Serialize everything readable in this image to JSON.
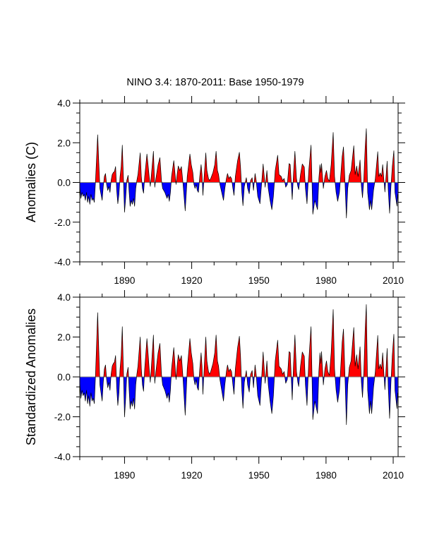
{
  "chart_data": {
    "type": "area",
    "title": "NINO 3.4: 1870-2011: Base 1950-1979",
    "xlim": [
      1870,
      2012.2
    ],
    "x_major_ticks": [
      1890,
      1920,
      1950,
      1980,
      2010
    ],
    "x_tick_labels": [
      "1890",
      "1920",
      "1950",
      "1980",
      "2010"
    ],
    "x_minor_step": 10,
    "y_tick_values": [
      4.0,
      2.0,
      0.0,
      -2.0,
      -4.0
    ],
    "y_tick_labels": [
      "4.0",
      "2.0",
      "0.0",
      "-2.0",
      "-4.0"
    ],
    "y_minor_step": 0.5,
    "grid": false,
    "legend": "none",
    "colors": {
      "positive": "#ff0000",
      "negative": "#0000ff",
      "line": "#000000"
    },
    "x": [
      1870.0,
      1870.5,
      1871.0,
      1871.5,
      1872.0,
      1872.5,
      1873.0,
      1873.5,
      1874.0,
      1874.5,
      1875.0,
      1875.5,
      1876.0,
      1876.5,
      1877.0,
      1877.5,
      1878.0,
      1878.5,
      1879.0,
      1879.5,
      1880.0,
      1880.5,
      1881.0,
      1881.5,
      1882.0,
      1882.5,
      1883.0,
      1883.5,
      1884.0,
      1884.5,
      1885.0,
      1885.5,
      1886.0,
      1886.5,
      1887.0,
      1887.5,
      1888.0,
      1888.5,
      1889.0,
      1889.5,
      1890.0,
      1890.5,
      1891.0,
      1891.6,
      1892.0,
      1892.5,
      1893.0,
      1893.5,
      1894.0,
      1894.5,
      1895.0,
      1895.5,
      1896.0,
      1897.0,
      1897.5,
      1898.0,
      1898.5,
      1899.0,
      1900.0,
      1900.5,
      1901.0,
      1901.5,
      1902.0,
      1902.9,
      1903.5,
      1904.0,
      1905.0,
      1905.8,
      1906.5,
      1907.0,
      1908.0,
      1909.0,
      1909.5,
      1910.0,
      1910.5,
      1911.0,
      1912.0,
      1912.5,
      1913.0,
      1913.5,
      1914.0,
      1914.7,
      1915.4,
      1916.0,
      1916.5,
      1917.1,
      1917.6,
      1918.0,
      1919.2,
      1919.8,
      1920.5,
      1921.0,
      1921.5,
      1922.0,
      1922.5,
      1923.0,
      1923.6,
      1924.2,
      1924.6,
      1925.0,
      1925.5,
      1926.3,
      1926.8,
      1927.5,
      1928.0,
      1928.5,
      1929.5,
      1930.3,
      1930.9,
      1931.5,
      1932.0,
      1932.6,
      1933.2,
      1934.2,
      1934.8,
      1935.5,
      1936.0,
      1936.6,
      1937.2,
      1937.8,
      1938.4,
      1938.9,
      1939.5,
      1940.5,
      1941.3,
      1941.8,
      1942.4,
      1942.9,
      1943.5,
      1944.4,
      1945.0,
      1945.7,
      1946.3,
      1947.0,
      1947.6,
      1948.3,
      1948.8,
      1949.5,
      1950.5,
      1951.2,
      1951.9,
      1952.4,
      1952.8,
      1953.6,
      1954.2,
      1955.0,
      1955.8,
      1956.5,
      1957.3,
      1958.4,
      1959.0,
      1960.0,
      1960.6,
      1961.3,
      1962.0,
      1962.7,
      1963.5,
      1964.0,
      1964.9,
      1965.5,
      1966.1,
      1966.8,
      1967.4,
      1967.8,
      1968.6,
      1969.4,
      1970.3,
      1970.8,
      1971.5,
      1972.3,
      1973.3,
      1973.7,
      1974.1,
      1975.0,
      1976.2,
      1976.8,
      1977.3,
      1977.7,
      1978.0,
      1978.8,
      1979.5,
      1980.2,
      1980.8,
      1981.5,
      1982.3,
      1983.2,
      1983.8,
      1984.5,
      1985.2,
      1986.0,
      1986.6,
      1987.2,
      1987.8,
      1988.4,
      1989.1,
      1989.7,
      1990.4,
      1991.2,
      1992.4,
      1993.0,
      1993.7,
      1994.3,
      1995.2,
      1995.8,
      1996.3,
      1996.9,
      1997.5,
      1998.0,
      1998.6,
      1999.4,
      1999.9,
      2000.4,
      2001.2,
      2002.0,
      2003.1,
      2003.6,
      2004.2,
      2004.8,
      2005.3,
      2005.8,
      2006.3,
      2007.3,
      2007.8,
      2008.4,
      2009.0,
      2009.6,
      2010.3,
      2010.8,
      2011.7,
      2012.0
    ],
    "panels": [
      {
        "name": "anomalies",
        "ylabel": "Anomalies (C)",
        "ylim": [
          -4.0,
          4.0
        ],
        "values": [
          -0.2,
          -0.8,
          -0.5,
          -0.7,
          -0.6,
          -0.9,
          -0.5,
          -1.0,
          -0.7,
          -1.1,
          -0.6,
          -0.9,
          -0.8,
          -1.0,
          0.0,
          1.2,
          2.4,
          1.0,
          -0.3,
          -0.6,
          -0.9,
          -0.2,
          0.3,
          0.45,
          -0.1,
          -0.4,
          -0.2,
          -0.5,
          0.1,
          0.4,
          0.5,
          0.55,
          0.8,
          -0.4,
          -1.07,
          -0.6,
          0.3,
          0.8,
          1.88,
          0.2,
          -1.5,
          -0.8,
          0.1,
          0.36,
          -0.4,
          -1.2,
          -0.9,
          -1.1,
          -0.8,
          -1.2,
          -0.3,
          0.1,
          0.4,
          1.49,
          0.3,
          -0.3,
          -0.54,
          0.3,
          1.43,
          0.9,
          0.3,
          -0.2,
          0.4,
          1.57,
          -0.24,
          0.2,
          0.9,
          1.25,
          0.1,
          -0.3,
          -0.5,
          -0.8,
          -0.6,
          -0.95,
          -0.5,
          0.3,
          1.1,
          0.5,
          -0.1,
          0.4,
          0.83,
          0.6,
          0.8,
          0.1,
          -0.6,
          -1.43,
          -0.5,
          0.3,
          1.43,
          0.9,
          0.5,
          -0.1,
          -0.3,
          -0.1,
          -0.4,
          -0.5,
          0.3,
          0.9,
          0.4,
          -0.65,
          0.2,
          1.49,
          0.6,
          0.2,
          0.1,
          0.2,
          0.5,
          0.9,
          1.57,
          0.6,
          0.4,
          -0.1,
          -0.4,
          -0.9,
          -0.3,
          0.2,
          0.45,
          0.2,
          0.3,
          0.2,
          -0.3,
          -0.65,
          0.3,
          1.1,
          1.52,
          0.8,
          -0.5,
          -1.17,
          -0.2,
          0.24,
          -0.3,
          -0.57,
          0.1,
          0.24,
          -0.4,
          0.45,
          0.1,
          -0.7,
          -1.07,
          -0.1,
          0.93,
          0.3,
          -0.24,
          0.6,
          -0.3,
          -0.9,
          -1.37,
          -0.7,
          0.6,
          1.37,
          0.4,
          0.3,
          0.1,
          0.2,
          -0.24,
          -0.1,
          0.95,
          0.9,
          -0.86,
          0.5,
          1.57,
          0.2,
          -0.2,
          -0.36,
          0.4,
          0.93,
          0.77,
          -0.3,
          -1.07,
          0.6,
          1.88,
          0.2,
          -1.6,
          -0.9,
          -1.37,
          0.2,
          0.9,
          0.5,
          0.95,
          -0.3,
          0.3,
          0.6,
          0.2,
          0.06,
          0.9,
          2.52,
          0.3,
          -0.5,
          -0.95,
          -0.5,
          0.4,
          1.3,
          1.79,
          0.2,
          -1.79,
          -0.3,
          0.36,
          0.6,
          1.85,
          0.4,
          0.83,
          0.3,
          1.13,
          -0.2,
          -0.77,
          0.2,
          1.8,
          2.71,
          -0.5,
          -1.37,
          -0.9,
          -1.37,
          -0.4,
          0.18,
          1.55,
          0.3,
          0.48,
          0.3,
          0.9,
          0.2,
          -0.48,
          1.07,
          -0.4,
          -1.55,
          -0.2,
          0.8,
          1.6,
          -0.5,
          -1.19,
          -0.6
        ]
      },
      {
        "name": "standardized",
        "ylabel": "Standardized Anomalies",
        "ylim": [
          -4.0,
          4.0
        ],
        "values": [
          -0.27,
          -1.07,
          -0.67,
          -0.94,
          -0.8,
          -1.21,
          -0.67,
          -1.34,
          -0.94,
          -1.47,
          -0.8,
          -1.21,
          -1.07,
          -1.34,
          0.0,
          1.61,
          3.22,
          1.34,
          -0.4,
          -0.8,
          -1.21,
          -0.27,
          0.4,
          0.6,
          -0.13,
          -0.54,
          -0.27,
          -0.67,
          0.13,
          0.54,
          0.67,
          0.74,
          1.07,
          -0.54,
          -1.43,
          -0.8,
          0.4,
          1.07,
          2.52,
          0.27,
          -2.01,
          -1.07,
          0.13,
          0.48,
          -0.54,
          -1.61,
          -1.21,
          -1.47,
          -1.07,
          -1.61,
          -0.4,
          0.13,
          0.54,
          2.0,
          0.4,
          -0.4,
          -0.72,
          0.4,
          1.92,
          1.21,
          0.4,
          -0.27,
          0.54,
          2.1,
          -0.32,
          0.27,
          1.21,
          1.68,
          0.13,
          -0.4,
          -0.67,
          -1.07,
          -0.8,
          -1.27,
          -0.67,
          0.4,
          1.47,
          0.67,
          -0.13,
          0.54,
          1.11,
          0.8,
          1.07,
          0.13,
          -0.8,
          -1.92,
          -0.67,
          0.4,
          1.92,
          1.21,
          0.67,
          -0.13,
          -0.4,
          -0.13,
          -0.54,
          -0.67,
          0.4,
          1.21,
          0.54,
          -0.87,
          0.27,
          2.0,
          0.8,
          0.27,
          0.13,
          0.27,
          0.67,
          1.21,
          2.1,
          0.8,
          0.54,
          -0.13,
          -0.54,
          -1.21,
          -0.4,
          0.27,
          0.6,
          0.27,
          0.4,
          0.27,
          -0.4,
          -0.87,
          0.4,
          1.47,
          2.04,
          1.07,
          -0.67,
          -1.57,
          -0.27,
          0.32,
          -0.4,
          -0.76,
          0.13,
          0.32,
          -0.54,
          0.6,
          0.13,
          -0.94,
          -1.43,
          -0.13,
          1.25,
          0.4,
          -0.32,
          0.8,
          -0.4,
          -1.21,
          -1.84,
          -0.94,
          0.8,
          1.84,
          0.54,
          0.4,
          0.13,
          0.27,
          -0.32,
          -0.13,
          1.27,
          1.21,
          -1.15,
          0.67,
          2.1,
          0.27,
          -0.27,
          -0.48,
          0.54,
          1.25,
          1.03,
          -0.4,
          -1.43,
          0.8,
          2.52,
          0.27,
          -2.14,
          -1.21,
          -1.84,
          0.27,
          1.21,
          0.67,
          1.27,
          -0.4,
          0.4,
          0.8,
          0.27,
          0.08,
          1.21,
          3.38,
          0.4,
          -0.67,
          -1.27,
          -0.67,
          0.54,
          1.74,
          2.4,
          0.27,
          -2.4,
          -0.4,
          0.48,
          0.8,
          2.48,
          0.54,
          1.11,
          0.4,
          1.51,
          -0.27,
          -1.03,
          0.27,
          2.41,
          3.63,
          -0.67,
          -1.84,
          -1.21,
          -1.84,
          -0.54,
          0.24,
          2.08,
          0.4,
          0.64,
          0.4,
          1.21,
          0.27,
          -0.64,
          1.43,
          -0.54,
          -2.08,
          -0.27,
          1.07,
          2.14,
          -0.67,
          -1.59,
          -0.8
        ]
      }
    ]
  }
}
